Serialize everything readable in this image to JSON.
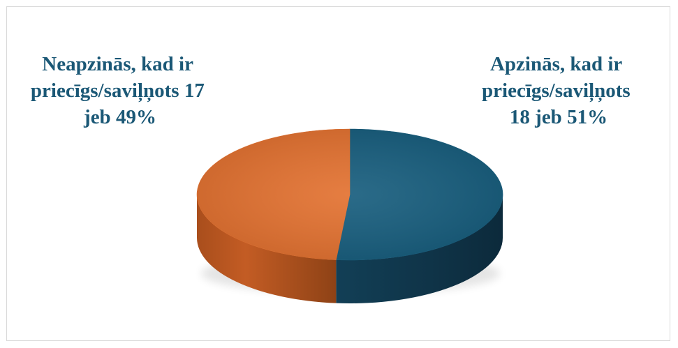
{
  "chart_data": {
    "type": "pie",
    "title": "",
    "three_d": true,
    "slices": [
      {
        "label_lines": [
          "Apzinās, kad ir",
          "priecīgs/saviļņots",
          "18 jeb 51%"
        ],
        "value": 18,
        "percent": 51,
        "color": "#185e7e"
      },
      {
        "label_lines": [
          "Neapzinās, kad ir",
          "priecīgs/saviļņots 17",
          "jeb 49%"
        ],
        "value": 17,
        "percent": 49,
        "color": "#e37231"
      }
    ]
  }
}
